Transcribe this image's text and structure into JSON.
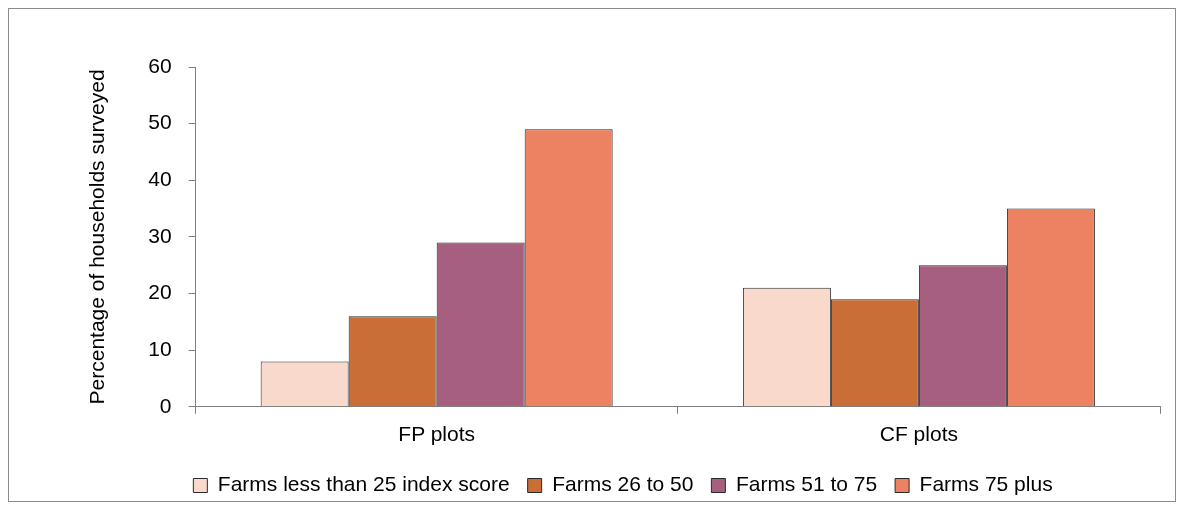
{
  "chart_data": {
    "type": "bar",
    "ylabel": "Percentage of households surveyed",
    "categories": [
      "FP plots",
      "CF plots"
    ],
    "series": [
      {
        "name": "Farms less than 25 index score",
        "color": "#f9d9cb",
        "values": [
          8,
          21
        ]
      },
      {
        "name": "Farms 26 to 50",
        "color": "#c96e36",
        "values": [
          16,
          19
        ]
      },
      {
        "name": "Farms 51 to 75",
        "color": "#a65f7f",
        "values": [
          29,
          25
        ]
      },
      {
        "name": "Farms 75 plus",
        "color": "#ed8262",
        "values": [
          49,
          35
        ]
      }
    ],
    "ylim": [
      0,
      60
    ],
    "yticks": [
      0,
      10,
      20,
      30,
      40,
      50,
      60
    ],
    "grid": false,
    "legend": "bottom"
  }
}
